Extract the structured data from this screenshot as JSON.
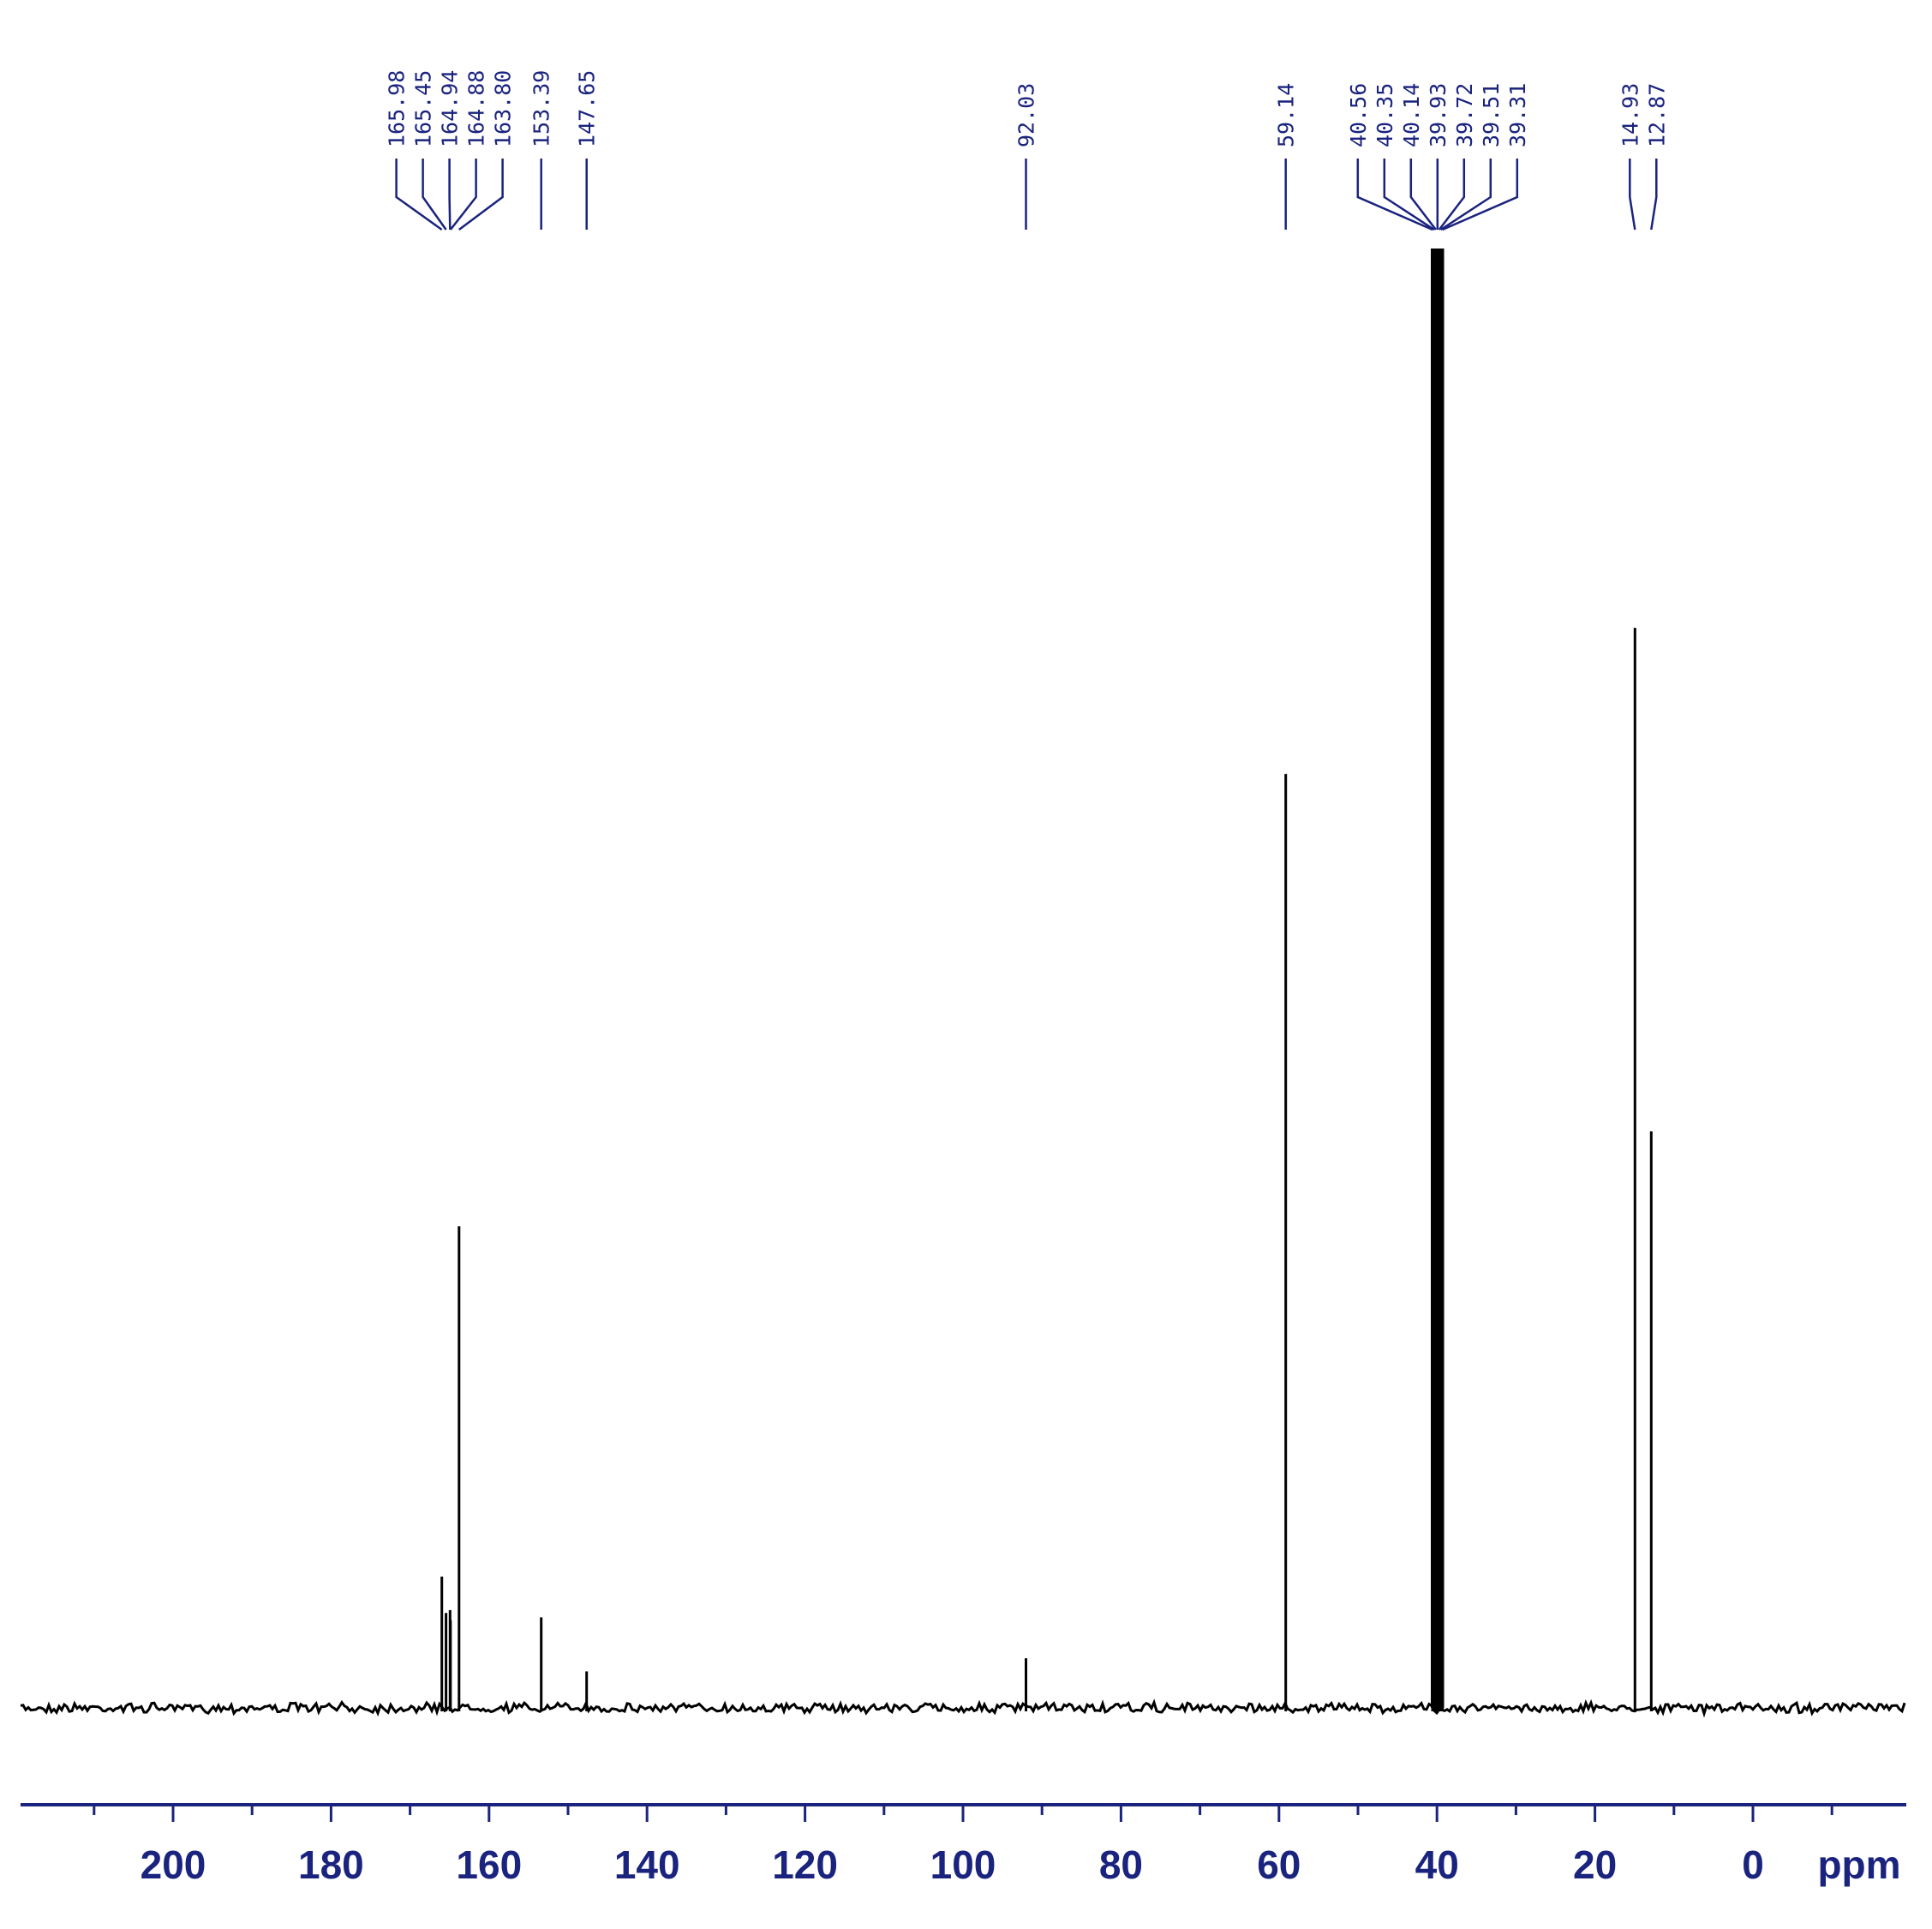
{
  "chart_data": {
    "type": "line",
    "title": "",
    "xlabel": "ppm",
    "ylabel": "",
    "xlim": [
      -19,
      218
    ],
    "x_reversed": true,
    "ylim": [
      0,
      1
    ],
    "grid": false,
    "colors": {
      "spectrum": "#000000",
      "axis": "#1a237e",
      "labels": "#1a237e"
    },
    "x_ticks": [
      200,
      180,
      160,
      140,
      120,
      100,
      80,
      60,
      40,
      20,
      0
    ],
    "x_tick_labels": [
      "200",
      "180",
      "160",
      "140",
      "120",
      "100",
      "80",
      "60",
      "40",
      "20",
      "0"
    ],
    "peaks": [
      {
        "shift": 165.98,
        "intensity": 0.09
      },
      {
        "shift": 165.45,
        "intensity": 0.065
      },
      {
        "shift": 164.94,
        "intensity": 0.067
      },
      {
        "shift": 164.88,
        "intensity": 0.06
      },
      {
        "shift": 163.8,
        "intensity": 0.33
      },
      {
        "shift": 153.39,
        "intensity": 0.062
      },
      {
        "shift": 147.65,
        "intensity": 0.025
      },
      {
        "shift": 92.03,
        "intensity": 0.034
      },
      {
        "shift": 59.14,
        "intensity": 0.64
      },
      {
        "shift": 40.56,
        "intensity": 0.17
      },
      {
        "shift": 40.35,
        "intensity": 0.4
      },
      {
        "shift": 40.14,
        "intensity": 0.8
      },
      {
        "shift": 39.93,
        "intensity": 1.0
      },
      {
        "shift": 39.72,
        "intensity": 0.8
      },
      {
        "shift": 39.51,
        "intensity": 0.39
      },
      {
        "shift": 39.31,
        "intensity": 0.16
      },
      {
        "shift": 14.93,
        "intensity": 0.74
      },
      {
        "shift": 12.87,
        "intensity": 0.395
      }
    ],
    "peak_labels": [
      {
        "text": "165.98",
        "shift": 165.98
      },
      {
        "text": "165.45",
        "shift": 165.45
      },
      {
        "text": "164.94",
        "shift": 164.94
      },
      {
        "text": "164.88",
        "shift": 164.88
      },
      {
        "text": "163.80",
        "shift": 163.8
      },
      {
        "text": "153.39",
        "shift": 153.39
      },
      {
        "text": "147.65",
        "shift": 147.65
      },
      {
        "text": "92.03",
        "shift": 92.03
      },
      {
        "text": "59.14",
        "shift": 59.14
      },
      {
        "text": "40.56",
        "shift": 40.56
      },
      {
        "text": "40.35",
        "shift": 40.35
      },
      {
        "text": "40.14",
        "shift": 40.14
      },
      {
        "text": "39.93",
        "shift": 39.93
      },
      {
        "text": "39.72",
        "shift": 39.72
      },
      {
        "text": "39.51",
        "shift": 39.51
      },
      {
        "text": "39.31",
        "shift": 39.31
      },
      {
        "text": "14.93",
        "shift": 14.93
      },
      {
        "text": "12.87",
        "shift": 12.87
      }
    ]
  }
}
